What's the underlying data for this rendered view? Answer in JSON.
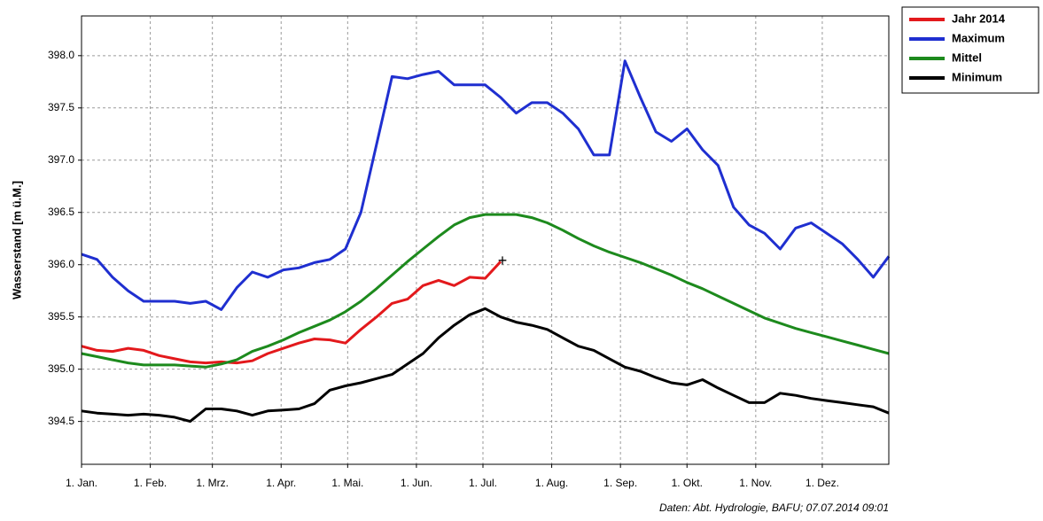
{
  "chart_data": {
    "type": "line",
    "y_label": "Wasserstand [m ü.M.]",
    "caption": "Daten: Abt. Hydrologie, BAFU; 07.07.2014 09:01",
    "grid": true,
    "legend": "outside-top-right",
    "end_marker": "+",
    "xlim": [
      1,
      365
    ],
    "xticks": [
      {
        "value": 1,
        "label": "1. Jan."
      },
      {
        "value": 32,
        "label": "1. Feb."
      },
      {
        "value": 60,
        "label": "1. Mrz."
      },
      {
        "value": 91,
        "label": "1. Apr."
      },
      {
        "value": 121,
        "label": "1. Mai."
      },
      {
        "value": 152,
        "label": "1. Jun."
      },
      {
        "value": 182,
        "label": "1. Jul."
      },
      {
        "value": 213,
        "label": "1. Aug."
      },
      {
        "value": 244,
        "label": "1. Sep."
      },
      {
        "value": 274,
        "label": "1. Okt."
      },
      {
        "value": 305,
        "label": "1. Nov."
      },
      {
        "value": 335,
        "label": "1. Dez."
      }
    ],
    "ylim": [
      394.09,
      398.38
    ],
    "yticks": [
      394.5,
      {
        "value": 395,
        "label": "395.0"
      },
      395.5,
      {
        "value": 396,
        "label": "396.0"
      },
      396.5,
      {
        "value": 397,
        "label": "397.0"
      },
      397.5,
      {
        "value": 398,
        "label": "398.0"
      }
    ],
    "x": [
      1,
      8,
      15,
      22,
      29,
      36,
      43,
      50,
      57,
      64,
      71,
      78,
      85,
      92,
      99,
      106,
      113,
      120,
      127,
      134,
      141,
      148,
      155,
      162,
      169,
      176,
      183,
      190,
      197,
      204,
      211,
      218,
      225,
      232,
      239,
      246,
      253,
      260,
      267,
      274,
      281,
      288,
      295,
      302,
      309,
      316,
      323,
      330,
      337,
      344,
      351,
      358,
      365
    ],
    "series": [
      {
        "name": "Jahr 2014",
        "color": "#e3191c",
        "values": [
          395.22,
          395.18,
          395.17,
          395.2,
          395.18,
          395.13,
          395.1,
          395.07,
          395.06,
          395.07,
          395.06,
          395.08,
          395.15,
          395.2,
          395.25,
          395.29,
          395.28,
          395.25,
          395.38,
          395.5,
          395.63,
          395.67,
          395.8,
          395.85,
          395.8,
          395.88,
          395.87,
          396.03,
          null,
          null,
          null,
          null,
          null,
          null,
          null,
          null,
          null,
          null,
          null,
          null,
          null,
          null,
          null,
          null,
          null,
          null,
          null,
          null,
          null,
          null,
          null,
          null,
          null
        ]
      },
      {
        "name": "Maximum",
        "color": "#1f2fd0",
        "values": [
          396.1,
          396.05,
          395.88,
          395.75,
          395.65,
          395.65,
          395.65,
          395.63,
          395.65,
          395.57,
          395.78,
          395.93,
          395.88,
          395.95,
          395.97,
          396.02,
          396.05,
          396.15,
          396.5,
          397.15,
          397.8,
          397.78,
          397.82,
          397.85,
          397.72,
          397.72,
          397.72,
          397.6,
          397.45,
          397.55,
          397.55,
          397.45,
          397.3,
          397.05,
          397.05,
          397.95,
          397.6,
          397.27,
          397.18,
          397.3,
          397.1,
          396.95,
          396.55,
          396.38,
          396.3,
          396.15,
          396.35,
          396.4,
          396.3,
          396.2,
          396.05,
          395.88,
          396.08
        ]
      },
      {
        "name": "Mittel",
        "color": "#1d8a1d",
        "values": [
          395.15,
          395.12,
          395.09,
          395.06,
          395.04,
          395.04,
          395.04,
          395.03,
          395.02,
          395.05,
          395.09,
          395.17,
          395.22,
          395.28,
          395.35,
          395.41,
          395.47,
          395.55,
          395.65,
          395.77,
          395.9,
          396.03,
          396.15,
          396.27,
          396.38,
          396.45,
          396.48,
          396.48,
          396.48,
          396.45,
          396.4,
          396.33,
          396.25,
          396.18,
          396.12,
          396.07,
          396.02,
          395.96,
          395.9,
          395.83,
          395.77,
          395.7,
          395.63,
          395.56,
          395.49,
          395.44,
          395.39,
          395.35,
          395.31,
          395.27,
          395.23,
          395.19,
          395.15
        ]
      },
      {
        "name": "Minimum",
        "color": "#000000",
        "values": [
          394.6,
          394.58,
          394.57,
          394.56,
          394.57,
          394.56,
          394.54,
          394.5,
          394.62,
          394.62,
          394.6,
          394.56,
          394.6,
          394.61,
          394.62,
          394.67,
          394.8,
          394.84,
          394.87,
          394.91,
          394.95,
          395.05,
          395.15,
          395.3,
          395.42,
          395.52,
          395.58,
          395.5,
          395.45,
          395.42,
          395.38,
          395.3,
          395.22,
          395.18,
          395.1,
          395.02,
          394.98,
          394.92,
          394.87,
          394.85,
          394.9,
          394.82,
          394.75,
          394.68,
          394.68,
          394.77,
          394.75,
          394.72,
          394.7,
          394.68,
          394.66,
          394.64,
          394.58
        ]
      }
    ]
  }
}
